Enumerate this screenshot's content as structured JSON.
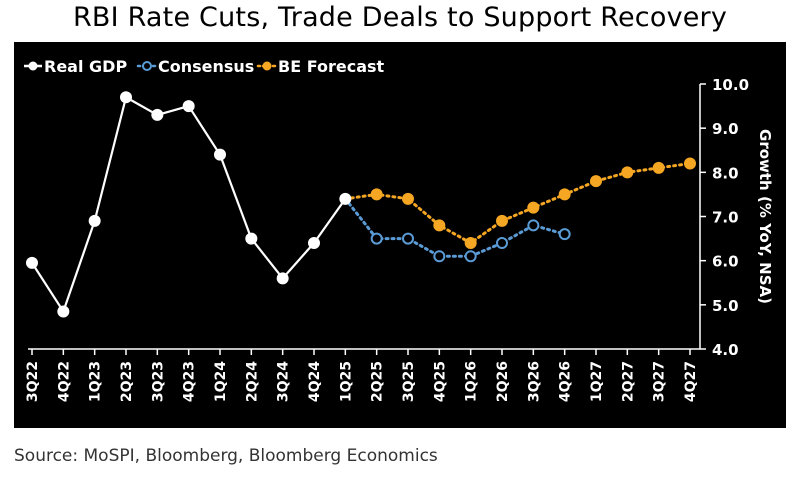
{
  "title": "RBI Rate Cuts, Trade Deals to Support Recovery",
  "source": "Source: MoSPI, Bloomberg, Bloomberg Economics",
  "chart_data": {
    "type": "line",
    "title": "RBI Rate Cuts, Trade Deals to Support Recovery",
    "xlabel": "",
    "ylabel": "Growth (% YoY, NSA)",
    "ylim": [
      4.0,
      10.0
    ],
    "yticks": [
      4.0,
      5.0,
      6.0,
      7.0,
      8.0,
      9.0,
      10.0
    ],
    "ytick_labels": [
      "4.0",
      "5.0",
      "6.0",
      "7.0",
      "8.0",
      "9.0",
      "10.0"
    ],
    "legend_position": "top-left",
    "categories": [
      "3Q22",
      "4Q22",
      "1Q23",
      "2Q23",
      "3Q23",
      "4Q23",
      "1Q24",
      "2Q24",
      "3Q24",
      "4Q24",
      "1Q25",
      "2Q25",
      "3Q25",
      "4Q25",
      "1Q26",
      "2Q26",
      "3Q26",
      "4Q26",
      "1Q27",
      "2Q27",
      "3Q27",
      "4Q27"
    ],
    "series": [
      {
        "name": "Real GDP",
        "color": "#ffffff",
        "style": "solid",
        "marker": "filled-circle",
        "values": [
          5.95,
          4.85,
          6.9,
          9.7,
          9.3,
          9.5,
          8.4,
          6.5,
          5.6,
          6.4,
          7.4,
          null,
          null,
          null,
          null,
          null,
          null,
          null,
          null,
          null,
          null,
          null
        ]
      },
      {
        "name": "Consensus",
        "color": "#5b9bd5",
        "style": "dotted",
        "marker": "hollow-circle",
        "values": [
          null,
          null,
          null,
          null,
          null,
          null,
          null,
          null,
          null,
          null,
          7.4,
          6.5,
          6.5,
          6.1,
          6.1,
          6.4,
          6.8,
          6.6,
          null,
          null,
          null,
          null
        ]
      },
      {
        "name": "BE Forecast",
        "color": "#f5a623",
        "style": "dotted",
        "marker": "filled-circle",
        "values": [
          null,
          null,
          null,
          null,
          null,
          null,
          null,
          null,
          null,
          null,
          7.4,
          7.5,
          7.4,
          6.8,
          6.4,
          6.9,
          7.2,
          7.5,
          7.8,
          8.0,
          8.1,
          8.2
        ]
      }
    ]
  }
}
